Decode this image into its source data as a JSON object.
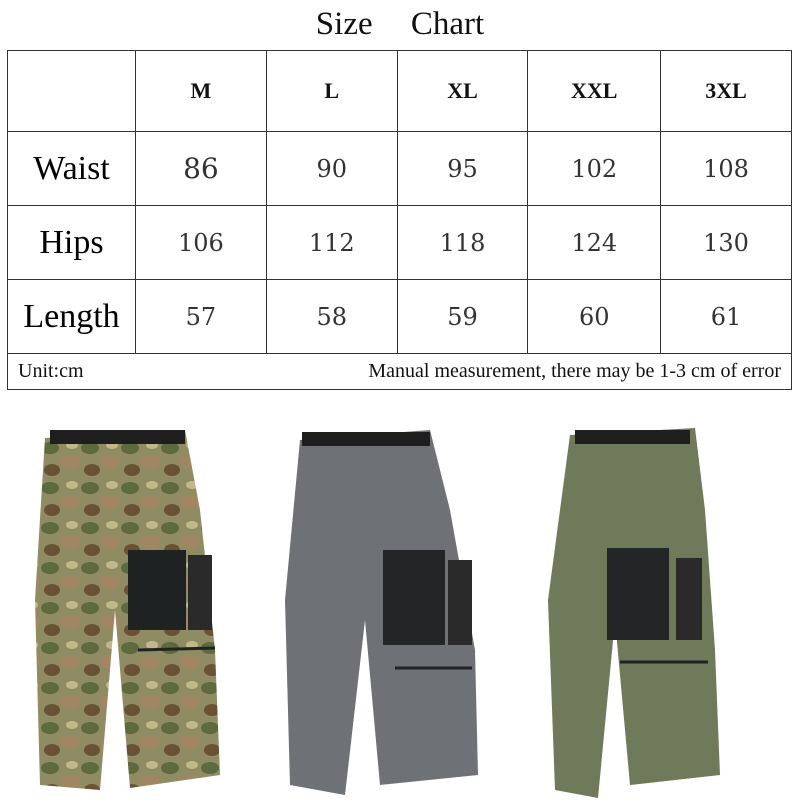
{
  "title": "Size Chart",
  "sizes": [
    "M",
    "L",
    "XL",
    "XXL",
    "3XL"
  ],
  "rows": [
    {
      "label": "Waist",
      "values": [
        "86",
        "90",
        "95",
        "102",
        "108"
      ]
    },
    {
      "label": "Hips",
      "values": [
        "106",
        "112",
        "118",
        "124",
        "130"
      ]
    },
    {
      "label": "Length",
      "values": [
        "57",
        "58",
        "59",
        "60",
        "61"
      ]
    }
  ],
  "unit": "Unit:cm",
  "note": "Manual measurement, there may be 1-3 cm of error",
  "product_colors": {
    "camo": "#8a8a5c",
    "grey": "#6e7176",
    "olive": "#6f7a5a"
  }
}
